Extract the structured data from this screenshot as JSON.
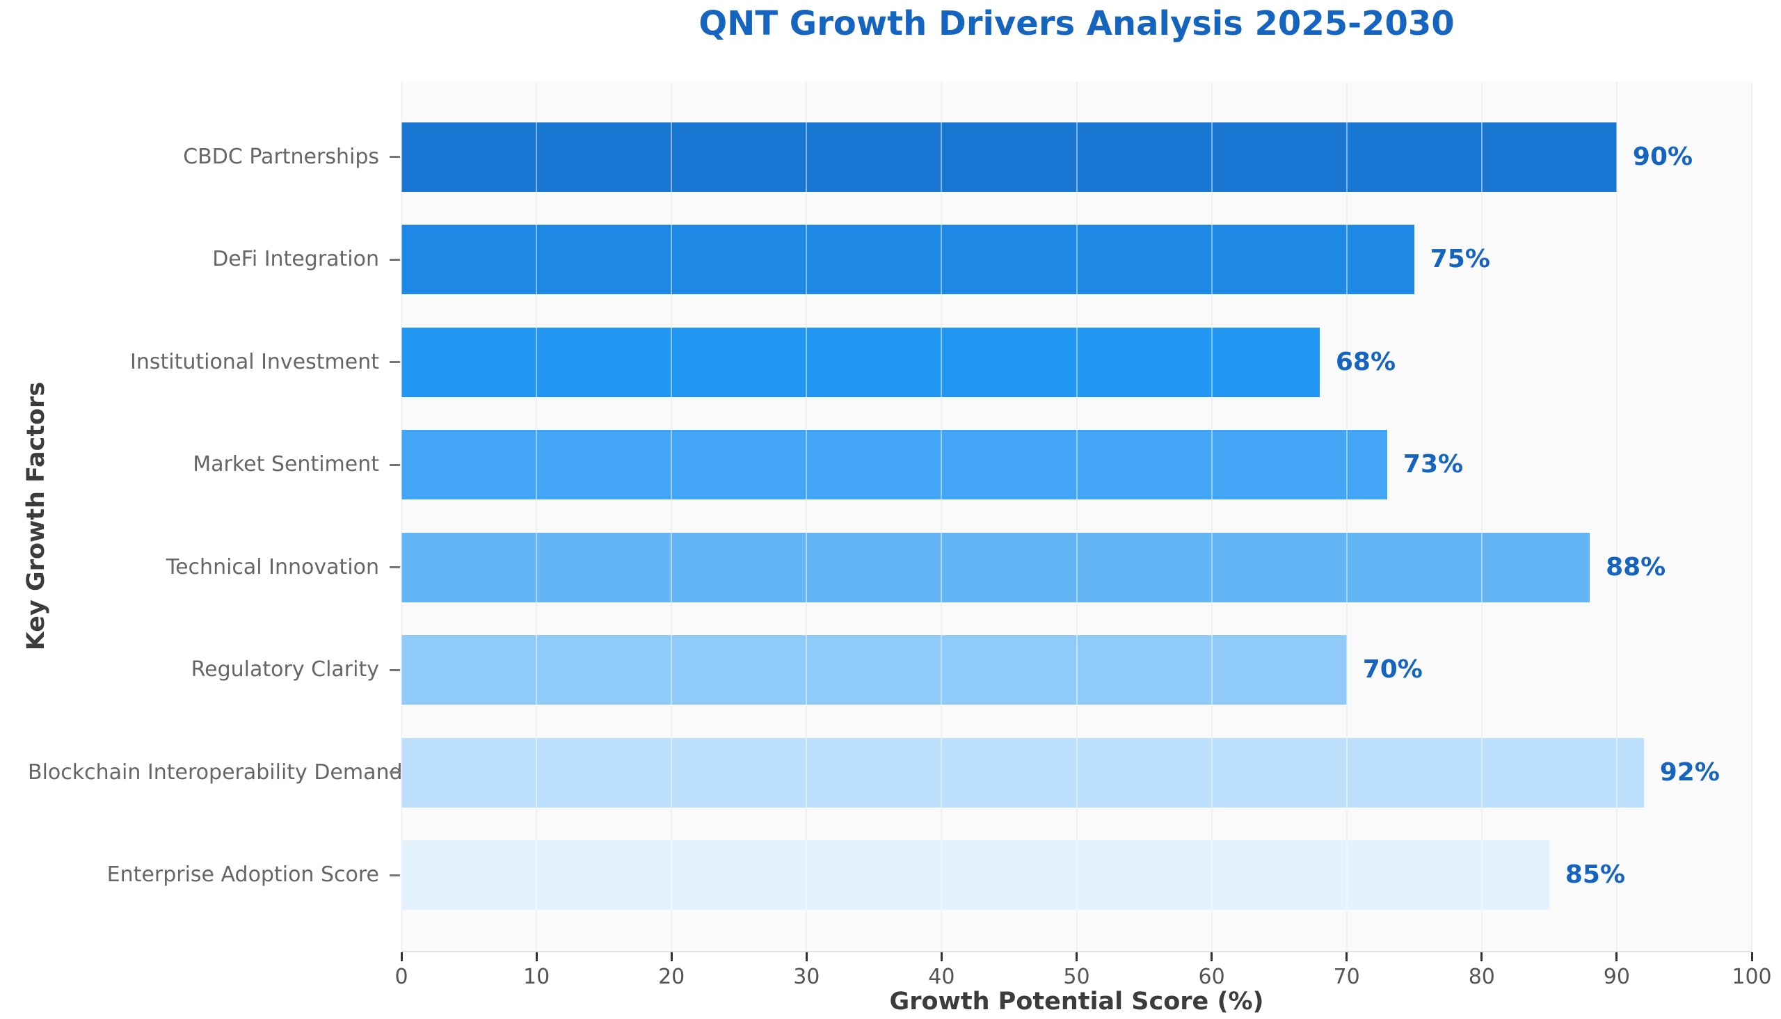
{
  "chart_data": {
    "type": "bar",
    "orientation": "horizontal",
    "title": "QNT Growth Drivers Analysis 2025-2030",
    "xlabel": "Growth Potential Score (%)",
    "ylabel": "Key Growth Factors",
    "xlim": [
      0,
      100
    ],
    "x_ticks": [
      0,
      10,
      20,
      30,
      40,
      50,
      60,
      70,
      80,
      90,
      100
    ],
    "grid": "vertical",
    "legend": "none",
    "categories": [
      "CBDC Partnerships",
      "DeFi Integration",
      "Institutional Investment",
      "Market Sentiment",
      "Technical Innovation",
      "Regulatory Clarity",
      "Blockchain Interoperability Demand",
      "Enterprise Adoption Score"
    ],
    "values": [
      90,
      75,
      68,
      73,
      88,
      70,
      92,
      85
    ],
    "value_labels": [
      "90%",
      "75%",
      "68%",
      "73%",
      "88%",
      "70%",
      "92%",
      "85%"
    ],
    "bar_colors": [
      "#1976d2",
      "#1e88e5",
      "#2196f3",
      "#42a5f5",
      "#64b5f6",
      "#90caf9",
      "#bbdefb",
      "#e3f2fd"
    ]
  },
  "colors": {
    "title": "#1565c0",
    "value_label": "#1565c0",
    "category_label": "#666666",
    "tick_label": "#555555",
    "axis_title": "#3c3c3c",
    "plot_background": "#fafafa",
    "page_background": "#ffffff",
    "gridline": "#e6e6e6",
    "tick_mark": "#333333",
    "y_tick_mark": "#777777"
  }
}
